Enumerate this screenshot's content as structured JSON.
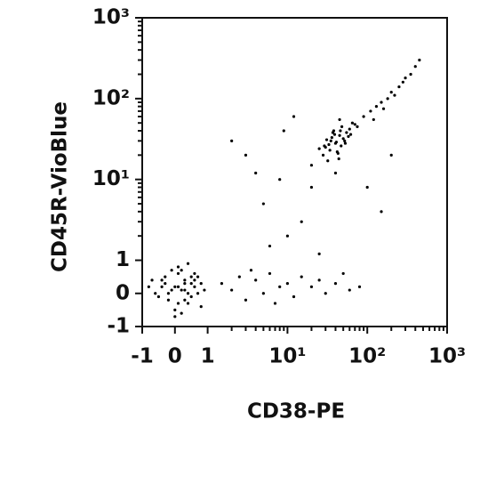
{
  "chart_data": {
    "type": "scatter",
    "scale": "biexponential",
    "color": "#000000",
    "xlabel": "CD38-PE",
    "ylabel": "CD45R-VioBlue",
    "xlim": [
      -1,
      1000
    ],
    "ylim": [
      -1,
      1000
    ],
    "xticks": [
      -1,
      0,
      1,
      {
        "value": 10,
        "label": "10¹"
      },
      {
        "value": 100,
        "label": "10²"
      },
      {
        "value": 1000,
        "label": "10³"
      }
    ],
    "yticks": [
      -1,
      0,
      1,
      {
        "value": 10,
        "label": "10¹"
      },
      {
        "value": 100,
        "label": "10²"
      },
      {
        "value": 1000,
        "label": "10³"
      }
    ],
    "minorticks": [
      2,
      3,
      4,
      5,
      6,
      7,
      8,
      9,
      20,
      30,
      40,
      50,
      60,
      70,
      80,
      90,
      200,
      300,
      400,
      500,
      600,
      700,
      800,
      900
    ],
    "x": [
      0.1,
      -0.3,
      0.5,
      0.2,
      -0.6,
      0.8,
      0.0,
      0.3,
      -0.1,
      0.6,
      0.4,
      -0.4,
      0.7,
      0.1,
      -0.2,
      0.9,
      0.3,
      -0.7,
      0.5,
      0.2,
      0.0,
      -0.5,
      0.6,
      0.4,
      0.1,
      -0.3,
      0.8,
      0.2,
      -0.1,
      0.3,
      0.7,
      -0.8,
      0.5,
      0.0,
      0.4,
      -0.2,
      0.6,
      0.1,
      0.3,
      -0.4,
      1.5,
      2,
      2.5,
      3,
      4,
      5,
      6,
      8,
      10,
      12,
      15,
      20,
      25,
      30,
      40,
      50,
      60,
      80,
      3.5,
      7,
      35,
      40,
      45,
      30,
      50,
      38,
      42,
      55,
      28,
      33,
      48,
      60,
      36,
      44,
      52,
      25,
      39,
      47,
      65,
      31,
      41,
      58,
      34,
      46,
      70,
      37,
      43,
      29,
      53,
      62,
      20,
      75,
      40,
      45,
      32,
      90,
      110,
      130,
      150,
      180,
      200,
      250,
      300,
      350,
      400,
      120,
      160,
      220,
      280,
      450,
      5,
      8,
      15,
      3,
      20,
      10,
      2,
      6,
      100,
      150,
      12,
      4,
      25,
      200,
      9
    ],
    "values": [
      0.2,
      0.5,
      -0.1,
      0.7,
      0.0,
      0.3,
      -0.5,
      0.4,
      0.1,
      0.6,
      -0.3,
      0.2,
      0.0,
      0.8,
      -0.2,
      0.1,
      0.3,
      0.4,
      0.5,
      -0.6,
      0.2,
      -0.1,
      0.4,
      0.0,
      0.6,
      0.3,
      -0.4,
      0.1,
      0.7,
      -0.2,
      0.5,
      0.2,
      0.3,
      -0.7,
      0.9,
      0.0,
      0.2,
      -0.3,
      0.1,
      0.4,
      0.3,
      0.1,
      0.5,
      -0.2,
      0.4,
      0.0,
      0.6,
      0.2,
      0.3,
      -0.1,
      0.5,
      0.2,
      0.4,
      0.0,
      0.3,
      0.6,
      0.1,
      0.2,
      0.7,
      -0.3,
      30,
      28,
      35,
      25,
      32,
      40,
      22,
      38,
      20,
      27,
      45,
      42,
      33,
      18,
      30,
      24,
      36,
      26,
      50,
      31,
      29,
      34,
      23,
      40,
      48,
      38,
      21,
      26,
      28,
      36,
      15,
      45,
      12,
      55,
      17,
      60,
      70,
      80,
      90,
      100,
      120,
      140,
      180,
      200,
      250,
      55,
      75,
      110,
      160,
      300,
      5,
      10,
      3,
      20,
      8,
      2,
      30,
      1.5,
      8,
      4,
      60,
      12,
      1.2,
      20,
      40
    ]
  }
}
